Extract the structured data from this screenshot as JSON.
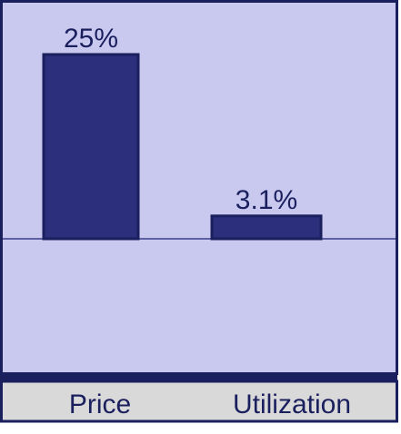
{
  "chart_data": {
    "type": "bar",
    "categories": [
      "Price",
      "Utilization"
    ],
    "values": [
      25,
      3.1
    ],
    "value_labels": [
      "25%",
      "3.1%"
    ],
    "color": "#2b2f7c"
  }
}
